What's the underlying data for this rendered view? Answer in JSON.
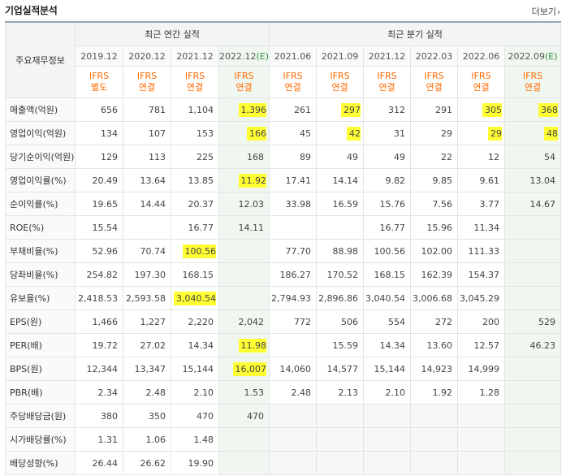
{
  "header": {
    "title": "기업실적분석",
    "more_label": "더보기"
  },
  "table": {
    "row_header_label": "주요재무정보",
    "annual_group_label": "최근 연간 실적",
    "quarter_group_label": "최근 분기 실적",
    "annual_periods": [
      "2019.12",
      "2020.12",
      "2021.12",
      "2022.12"
    ],
    "annual_estimate_tag": "(E)",
    "quarter_periods": [
      "2021.06",
      "2021.09",
      "2021.12",
      "2022.03",
      "2022.06",
      "2022.09"
    ],
    "quarter_estimate_tag": "(E)",
    "standards": [
      {
        "top": "IFRS",
        "bottom": "별도"
      },
      {
        "top": "IFRS",
        "bottom": "연결"
      },
      {
        "top": "IFRS",
        "bottom": "연결"
      },
      {
        "top": "IFRS",
        "bottom": "연결"
      },
      {
        "top": "IFRS",
        "bottom": "연결"
      },
      {
        "top": "IFRS",
        "bottom": "연결"
      },
      {
        "top": "IFRS",
        "bottom": "연결"
      },
      {
        "top": "IFRS",
        "bottom": "연결"
      },
      {
        "top": "IFRS",
        "bottom": "연결"
      },
      {
        "top": "IFRS",
        "bottom": "연결"
      }
    ],
    "rows": [
      {
        "label": "매출액(억원)",
        "values": [
          "656",
          "781",
          "1,104",
          "1,396",
          "261",
          "297",
          "312",
          "291",
          "305",
          "368"
        ]
      },
      {
        "label": "영업이익(억원)",
        "values": [
          "134",
          "107",
          "153",
          "166",
          "45",
          "42",
          "31",
          "29",
          "29",
          "48"
        ]
      },
      {
        "label": "당기순이익(억원)",
        "values": [
          "129",
          "113",
          "225",
          "168",
          "89",
          "49",
          "49",
          "22",
          "12",
          "54"
        ]
      },
      {
        "label": "영업이익률(%)",
        "values": [
          "20.49",
          "13.64",
          "13.85",
          "11.92",
          "17.41",
          "14.14",
          "9.82",
          "9.85",
          "9.61",
          "13.04"
        ]
      },
      {
        "label": "순이익률(%)",
        "values": [
          "19.65",
          "14.44",
          "20.37",
          "12.03",
          "33.98",
          "16.59",
          "15.76",
          "7.56",
          "3.77",
          "14.67"
        ]
      },
      {
        "label": "ROE(%)",
        "values": [
          "15.54",
          "",
          "16.77",
          "14.11",
          "",
          "",
          "16.77",
          "15.96",
          "11.34",
          ""
        ]
      },
      {
        "label": "부채비율(%)",
        "values": [
          "52.96",
          "70.74",
          "100.56",
          "",
          "77.70",
          "88.98",
          "100.56",
          "102.00",
          "111.33",
          ""
        ]
      },
      {
        "label": "당좌비율(%)",
        "values": [
          "254.82",
          "197.30",
          "168.15",
          "",
          "186.27",
          "170.52",
          "168.15",
          "162.39",
          "154.37",
          ""
        ]
      },
      {
        "label": "유보율(%)",
        "values": [
          "2,418.53",
          "2,593.58",
          "3,040.54",
          "",
          "2,794.93",
          "2,896.86",
          "3,040.54",
          "3,006.68",
          "3,045.29",
          ""
        ]
      },
      {
        "label": "EPS(원)",
        "values": [
          "1,466",
          "1,227",
          "2,220",
          "2,042",
          "772",
          "506",
          "554",
          "272",
          "200",
          "529"
        ]
      },
      {
        "label": "PER(배)",
        "values": [
          "19.72",
          "27.02",
          "14.34",
          "11.98",
          "",
          "15.59",
          "14.34",
          "13.60",
          "12.57",
          "46.23"
        ]
      },
      {
        "label": "BPS(원)",
        "values": [
          "12,344",
          "13,347",
          "15,144",
          "16,007",
          "14,060",
          "14,577",
          "15,144",
          "14,923",
          "14,999",
          ""
        ]
      },
      {
        "label": "PBR(배)",
        "values": [
          "2.34",
          "2.48",
          "2.10",
          "1.53",
          "2.48",
          "2.13",
          "2.10",
          "1.92",
          "1.28",
          ""
        ]
      },
      {
        "label": "주당배당금(원)",
        "values": [
          "380",
          "350",
          "470",
          "470",
          "",
          "",
          "",
          "",
          "",
          ""
        ]
      },
      {
        "label": "시가배당률(%)",
        "values": [
          "1.31",
          "1.06",
          "1.48",
          "",
          "",
          "",
          "",
          "",
          "",
          ""
        ]
      },
      {
        "label": "배당성향(%)",
        "values": [
          "26.44",
          "26.62",
          "19.90",
          "",
          "",
          "",
          "",
          "",
          "",
          ""
        ]
      }
    ],
    "highlight_color": "#ffff33",
    "estimate_color": "#2e8b3a",
    "standard_color": "#ff6a00"
  }
}
